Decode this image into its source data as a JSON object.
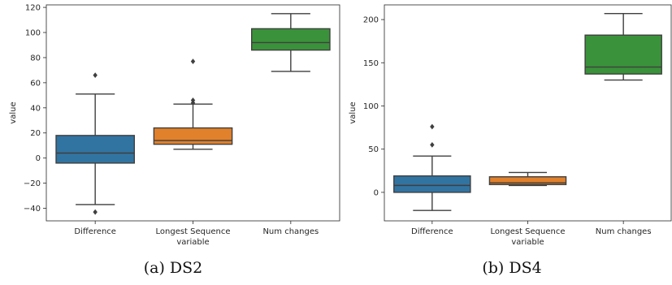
{
  "chart_data": [
    {
      "type": "box",
      "caption": "(a) DS2",
      "xlabel": "variable",
      "ylabel": "value",
      "ylim": [
        -50,
        122
      ],
      "yticks": [
        -40,
        -20,
        0,
        20,
        40,
        60,
        80,
        100,
        120
      ],
      "yticklabels": [
        "−40",
        "−20",
        "0",
        "20",
        "40",
        "60",
        "80",
        "100",
        "120"
      ],
      "categories": [
        "Difference",
        "Longest Sequence",
        "Num changes"
      ],
      "boxes": [
        {
          "category": "Difference",
          "color": "#3274a1",
          "whisker_low": -37,
          "q1": -4,
          "median": 4,
          "q3": 18,
          "whisker_high": 51,
          "outliers": [
            66,
            -43
          ]
        },
        {
          "category": "Longest Sequence",
          "color": "#e1812c",
          "whisker_low": 7,
          "q1": 11,
          "median": 14,
          "q3": 24,
          "whisker_high": 43,
          "outliers": [
            77,
            46,
            44
          ]
        },
        {
          "category": "Num changes",
          "color": "#3a923a",
          "whisker_low": 69,
          "q1": 86,
          "median": 92,
          "q3": 103,
          "whisker_high": 115,
          "outliers": []
        }
      ]
    },
    {
      "type": "box",
      "caption": "(b) DS4",
      "xlabel": "variable",
      "ylabel": "value",
      "ylim": [
        -33,
        217
      ],
      "yticks": [
        0,
        50,
        100,
        150,
        200
      ],
      "yticklabels": [
        "0",
        "50",
        "100",
        "150",
        "200"
      ],
      "categories": [
        "Difference",
        "Longest Sequence",
        "Num changes"
      ],
      "boxes": [
        {
          "category": "Difference",
          "color": "#3274a1",
          "whisker_low": -21,
          "q1": 0,
          "median": 8,
          "q3": 19,
          "whisker_high": 42,
          "outliers": [
            76,
            55
          ]
        },
        {
          "category": "Longest Sequence",
          "color": "#e1812c",
          "whisker_low": 8,
          "q1": 9,
          "median": 11,
          "q3": 18,
          "whisker_high": 23,
          "outliers": []
        },
        {
          "category": "Num changes",
          "color": "#3a923a",
          "whisker_low": 130,
          "q1": 137,
          "median": 145,
          "q3": 182,
          "whisker_high": 207,
          "outliers": []
        }
      ]
    }
  ]
}
